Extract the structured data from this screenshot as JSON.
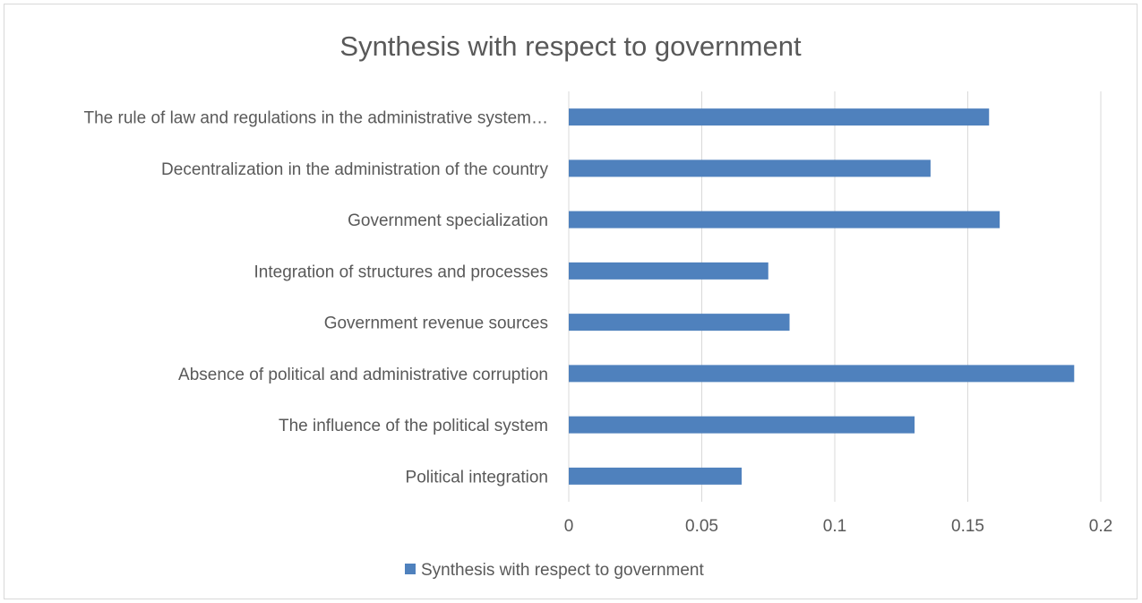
{
  "chart_data": {
    "type": "bar",
    "orientation": "horizontal",
    "title": "Synthesis with respect to government",
    "categories": [
      "The rule of law and regulations in the administrative system…",
      "Decentralization in the administration of the country",
      "Government specialization",
      "Integration of structures and processes",
      "Government revenue sources",
      "Absence of political and administrative corruption",
      "The influence of the political system",
      "Political integration"
    ],
    "series": [
      {
        "name": "Synthesis with respect to government",
        "values": [
          0.158,
          0.136,
          0.162,
          0.075,
          0.083,
          0.19,
          0.13,
          0.065
        ],
        "color": "#4f81bd"
      }
    ],
    "xlim": [
      0,
      0.2
    ],
    "xticks": [
      "0",
      "0.05",
      "0.1",
      "0.15",
      "0.2"
    ],
    "xtick_values": [
      0,
      0.05,
      0.1,
      0.15,
      0.2
    ],
    "grid": "vertical",
    "gridline_color": "#d9d9d9",
    "legend_position": "bottom"
  }
}
